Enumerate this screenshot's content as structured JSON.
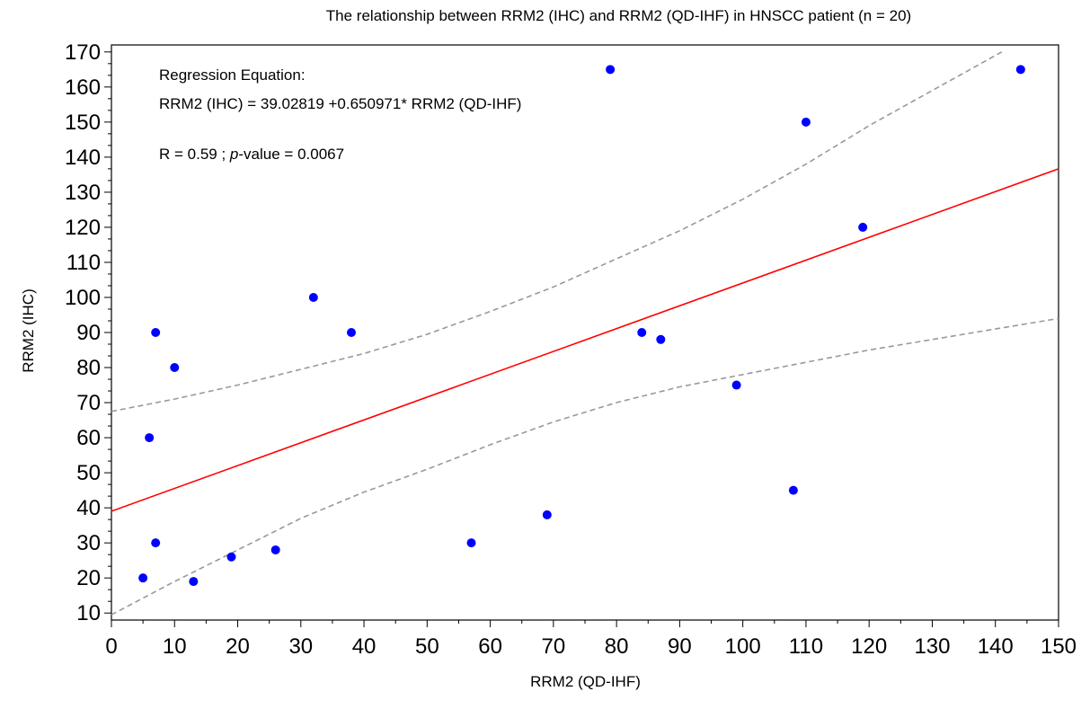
{
  "chart_data": {
    "type": "scatter",
    "title": "The relationship between RRM2 (IHC) and RRM2 (QD-IHF) in HNSCC patient (n = 20)",
    "xlabel": "RRM2 (QD-IHF)",
    "ylabel": "RRM2 (IHC)",
    "xlim": [
      0,
      150
    ],
    "ylim": [
      8,
      172
    ],
    "x_ticks": [
      0,
      10,
      20,
      30,
      40,
      50,
      60,
      70,
      80,
      90,
      100,
      110,
      120,
      130,
      140,
      150
    ],
    "y_ticks": [
      10,
      20,
      30,
      40,
      50,
      60,
      70,
      80,
      90,
      100,
      110,
      120,
      130,
      140,
      150,
      160,
      170
    ],
    "grid": false,
    "points": [
      {
        "x": 5,
        "y": 20
      },
      {
        "x": 6,
        "y": 60
      },
      {
        "x": 7,
        "y": 90
      },
      {
        "x": 7,
        "y": 30
      },
      {
        "x": 10,
        "y": 80
      },
      {
        "x": 13,
        "y": 19
      },
      {
        "x": 19,
        "y": 26
      },
      {
        "x": 26,
        "y": 28
      },
      {
        "x": 32,
        "y": 100
      },
      {
        "x": 38,
        "y": 90
      },
      {
        "x": 57,
        "y": 30
      },
      {
        "x": 69,
        "y": 38
      },
      {
        "x": 79,
        "y": 165
      },
      {
        "x": 84,
        "y": 90
      },
      {
        "x": 87,
        "y": 88
      },
      {
        "x": 99,
        "y": 75
      },
      {
        "x": 108,
        "y": 45
      },
      {
        "x": 110,
        "y": 150
      },
      {
        "x": 119,
        "y": 120
      },
      {
        "x": 144,
        "y": 165
      }
    ],
    "regression": {
      "intercept": 39.02819,
      "slope": 0.650971
    },
    "confidence_upper": [
      {
        "x": 0,
        "y": 67.5
      },
      {
        "x": 10,
        "y": 71
      },
      {
        "x": 20,
        "y": 75
      },
      {
        "x": 30,
        "y": 79.5
      },
      {
        "x": 40,
        "y": 84
      },
      {
        "x": 50,
        "y": 89.5
      },
      {
        "x": 60,
        "y": 96
      },
      {
        "x": 70,
        "y": 103
      },
      {
        "x": 80,
        "y": 111
      },
      {
        "x": 90,
        "y": 119
      },
      {
        "x": 100,
        "y": 128
      },
      {
        "x": 110,
        "y": 138
      },
      {
        "x": 120,
        "y": 149
      },
      {
        "x": 130,
        "y": 159
      },
      {
        "x": 141,
        "y": 170
      }
    ],
    "confidence_lower": [
      {
        "x": 0,
        "y": 9.5
      },
      {
        "x": 10,
        "y": 19
      },
      {
        "x": 20,
        "y": 28
      },
      {
        "x": 30,
        "y": 37
      },
      {
        "x": 40,
        "y": 44.5
      },
      {
        "x": 50,
        "y": 51
      },
      {
        "x": 60,
        "y": 58
      },
      {
        "x": 70,
        "y": 64.5
      },
      {
        "x": 80,
        "y": 70
      },
      {
        "x": 90,
        "y": 74.5
      },
      {
        "x": 100,
        "y": 78
      },
      {
        "x": 110,
        "y": 81.5
      },
      {
        "x": 120,
        "y": 85
      },
      {
        "x": 130,
        "y": 88
      },
      {
        "x": 140,
        "y": 91
      },
      {
        "x": 150,
        "y": 94
      }
    ],
    "colors": {
      "points": "#0000ff",
      "regression": "#ff0000",
      "confidence": "#999999",
      "axis": "#000000"
    },
    "annotation": {
      "line1": "Regression Equation:",
      "line2": "RRM2 (IHC) = 39.02819 +0.650971* RRM2 (QD-IHF)",
      "stat_prefix": "R = 0.59 ; ",
      "stat_italic": "p",
      "stat_suffix": "-value = 0.0067"
    }
  }
}
